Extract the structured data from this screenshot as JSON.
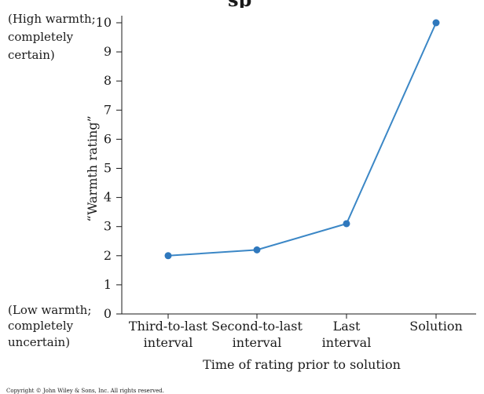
{
  "chart_data": {
    "type": "line",
    "title": "",
    "xlabel": "Time of rating prior to solution",
    "ylabel": "“Warmth rating”",
    "categories": [
      [
        "Third-to-last",
        "interval"
      ],
      [
        "Second-to-last",
        "interval"
      ],
      [
        "Last",
        "interval"
      ],
      [
        "Solution"
      ]
    ],
    "series": [
      {
        "values": [
          2.0,
          2.2,
          3.1,
          10.0
        ]
      }
    ],
    "ylim": [
      0,
      10
    ],
    "yticks": [
      0,
      1,
      2,
      3,
      4,
      5,
      6,
      7,
      8,
      9,
      10
    ],
    "grid": false,
    "colors": {
      "line": "#3b87c6",
      "marker": "#2f78bd",
      "axis": "#1a1a1a"
    },
    "annotations": {
      "top": [
        "(High warmth;",
        "completely",
        "certain)"
      ],
      "bottom": [
        "(Low warmth;",
        "completely",
        "uncertain)"
      ]
    }
  },
  "page": {
    "cropped_title": "sp",
    "copyright": "Copyright © John Wiley & Sons, Inc. All rights reserved."
  }
}
